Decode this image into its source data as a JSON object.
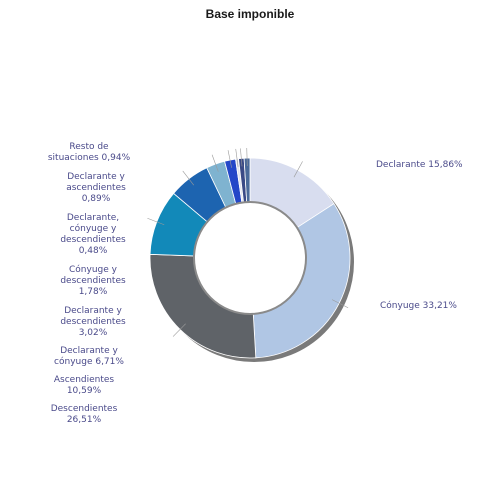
{
  "chart_data": {
    "type": "pie",
    "variant": "donut",
    "title": "Base imponible",
    "slices": [
      {
        "label": "Declarante 15,86%",
        "value": 15.86,
        "color": "#d8ddef"
      },
      {
        "label": "Cónyuge 33,21%",
        "value": 33.21,
        "color": "#b0c6e4"
      },
      {
        "label": "Descendientes 26,51%",
        "value": 26.51,
        "color": "#5f6368"
      },
      {
        "label": "Ascendientes 10,59%",
        "value": 10.59,
        "color": "#1289b9"
      },
      {
        "label": "Declarante y cónyuge 6,71%",
        "value": 6.71,
        "color": "#1d64b0"
      },
      {
        "label": "Declarante y descendientes 3,02%",
        "value": 3.02,
        "color": "#7fb3d0"
      },
      {
        "label": "Cónyuge y descendientes 1,78%",
        "value": 1.78,
        "color": "#2447c8"
      },
      {
        "label": "Declarante, cónyuge y descendientes 0,48%",
        "value": 0.48,
        "color": "#e3e6ee"
      },
      {
        "label": "Declarante y ascendientes 0,89%",
        "value": 0.89,
        "color": "#3a4a86"
      },
      {
        "label": "Resto de situaciones 0,94%",
        "value": 0.94,
        "color": "#4a6a9a"
      }
    ],
    "labels": {
      "declarante": "Declarante 15,86%",
      "conyuge": "Cónyuge 33,21%",
      "resto": [
        "Resto de",
        "situaciones 0,94%"
      ],
      "decl_asc": [
        "Declarante y",
        "ascendientes",
        "0,89%"
      ],
      "decl_cony_desc": [
        "Declarante,",
        "cónyuge y",
        "descendientes",
        "0,48%"
      ],
      "cony_desc": [
        "Cónyuge y",
        "descendientes",
        "1,78%"
      ],
      "decl_desc": [
        "Declarante y",
        "descendientes",
        "3,02%"
      ],
      "decl_cony": [
        "Declarante y",
        "cónyuge 6,71%"
      ],
      "ascendientes": [
        "Ascendientes",
        "10,59%"
      ],
      "descendientes": [
        "Descendientes",
        "26,51%"
      ]
    }
  }
}
